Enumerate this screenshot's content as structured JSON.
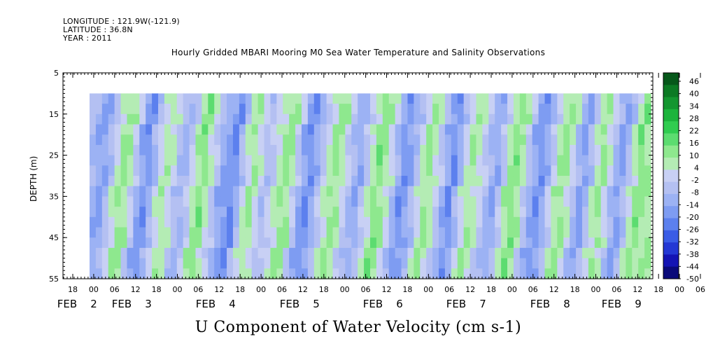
{
  "header": {
    "longitude": "LONGITUDE : 121.9W(-121.9)",
    "latitude": "LATITUDE : 36.8N",
    "year": "YEAR : 2011"
  },
  "chart_data": {
    "type": "heatmap",
    "title": "Hourly Gridded MBARI Mooring M0 Sea Water Temperature and Salinity Observations",
    "xlabel": "U Component of Water Velocity (cm s-1)",
    "ylabel": "DEPTH (m)",
    "y_ticks": [
      "5",
      "15",
      "25",
      "35",
      "45",
      "55"
    ],
    "ylim": [
      55,
      5
    ],
    "data_depth_range": [
      10,
      55
    ],
    "x_hour_ticks": [
      "18",
      "00",
      "06",
      "12",
      "18",
      "00",
      "06",
      "12",
      "18",
      "00",
      "06",
      "12",
      "18",
      "00",
      "06",
      "12",
      "18",
      "00",
      "06",
      "12",
      "18",
      "00",
      "06",
      "12",
      "18",
      "00",
      "06",
      "12",
      "18",
      "00",
      "06",
      "12"
    ],
    "x_date_labels": [
      {
        "month": "FEB",
        "day": "2"
      },
      {
        "month": "FEB",
        "day": "3"
      },
      {
        "month": "FEB",
        "day": "4"
      },
      {
        "month": "FEB",
        "day": "5"
      },
      {
        "month": "FEB",
        "day": "6"
      },
      {
        "month": "FEB",
        "day": "7"
      },
      {
        "month": "FEB",
        "day": "8"
      },
      {
        "month": "FEB",
        "day": "9"
      }
    ],
    "colorbar_levels": [
      "46",
      "40",
      "34",
      "28",
      "22",
      "16",
      "10",
      "4",
      "-2",
      "-8",
      "-14",
      "-20",
      "-26",
      "-32",
      "-38",
      "-44",
      "-50"
    ],
    "colorbar_range": [
      -50,
      52
    ],
    "u_profile_by_time": [
      -8,
      -12,
      -14,
      -6,
      4,
      12,
      8,
      -2,
      -14,
      -18,
      -10,
      2,
      8,
      4,
      -6,
      -10,
      -2,
      8,
      14,
      6,
      -4,
      -12,
      -16,
      -20,
      -8,
      4,
      10,
      2,
      -6,
      -2,
      6,
      12,
      10,
      -2,
      -14,
      -20,
      -12,
      -4,
      6,
      12,
      8,
      0,
      -8,
      -12,
      -4,
      6,
      14,
      10,
      2,
      -10,
      -18,
      -14,
      -6,
      4,
      12,
      6,
      -4,
      -12,
      -20,
      -10,
      2,
      10,
      6,
      -2,
      -10,
      -14,
      -4,
      8,
      14,
      8,
      -4,
      -12,
      -18,
      -12,
      -2,
      8,
      12,
      4,
      -8,
      -16,
      -6,
      6,
      12,
      2,
      -10,
      -16,
      -6,
      6,
      14,
      10
    ]
  },
  "colors": {
    "ramp": [
      "#0a0a7a",
      "#1414b4",
      "#2438d4",
      "#3a5ce6",
      "#5c80ee",
      "#7e9cf2",
      "#9cb2f4",
      "#b4c0f2",
      "#c8d0f4",
      "#b4ecb4",
      "#8ee88e",
      "#5cdc70",
      "#30cc50",
      "#1cb43c",
      "#149630",
      "#0c7a24",
      "#06581a"
    ],
    "background": "#ffffff"
  }
}
